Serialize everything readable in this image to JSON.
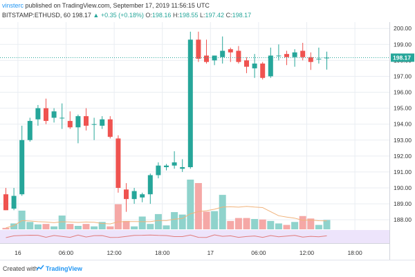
{
  "header": {
    "author": "vinsterc",
    "published": "published on TradingView.com, September 17, 2019 11:56:15 UTC",
    "symbol": "BITSTAMP:ETHUSD, 60",
    "last": "198.17",
    "change": "▲ +0.35 (+0.18%)",
    "o_label": "O:",
    "o_val": "198.16",
    "h_label": "H:",
    "h_val": "198.55",
    "l_label": "L:",
    "l_val": "197.42",
    "c_label": "C:",
    "c_val": "198.17"
  },
  "footer": {
    "created_with": "Created with",
    "brand": "TradingView"
  },
  "colors": {
    "up": "#26a69a",
    "down": "#ef5350",
    "vol_up": "#8fd3cc",
    "vol_down": "#f5a8a6",
    "grid": "#e9edf2",
    "last_line": "#26a69a",
    "label_bg": "#26a69a",
    "ind_bg": "#ede4fb",
    "ind_line": "#e07a7a"
  },
  "chart_data": {
    "type": "candlestick",
    "symbol": "BITSTAMP:ETHUSD",
    "interval": "60",
    "y_ticks": [
      188,
      189,
      190,
      191,
      192,
      193,
      194,
      195,
      196,
      197,
      198,
      199,
      200
    ],
    "y_ticks_text": [
      "188.00",
      "189.00",
      "190.00",
      "191.00",
      "192.00",
      "193.00",
      "194.00",
      "195.00",
      "196.00",
      "197.00",
      "198.00",
      "199.00",
      "200.00"
    ],
    "ylim": [
      187.4,
      200.4
    ],
    "x_ticks": [
      {
        "i": 1.5,
        "label": "16"
      },
      {
        "i": 7.5,
        "label": "06:00"
      },
      {
        "i": 13.5,
        "label": "12:00"
      },
      {
        "i": 19.5,
        "label": "18:00"
      },
      {
        "i": 25.5,
        "label": "17"
      },
      {
        "i": 31.5,
        "label": "06:00"
      },
      {
        "i": 37.5,
        "label": "12:00"
      },
      {
        "i": 43.5,
        "label": "18:00"
      }
    ],
    "last_price": 198.17,
    "last_price_label": "198.17",
    "candles": [
      {
        "o": 189.6,
        "h": 190.0,
        "l": 188.6,
        "c": 188.6,
        "v": 0.3
      },
      {
        "o": 188.7,
        "h": 190.0,
        "l": 188.6,
        "c": 189.5,
        "v": 1.2
      },
      {
        "o": 189.6,
        "h": 193.9,
        "l": 189.5,
        "c": 193.0,
        "v": 3.8
      },
      {
        "o": 193.0,
        "h": 194.4,
        "l": 192.9,
        "c": 194.2,
        "v": 1.5
      },
      {
        "o": 194.3,
        "h": 195.2,
        "l": 193.9,
        "c": 195.0,
        "v": 1.0
      },
      {
        "o": 195.0,
        "h": 195.6,
        "l": 194.0,
        "c": 194.2,
        "v": 1.1
      },
      {
        "o": 194.4,
        "h": 195.0,
        "l": 194.1,
        "c": 194.8,
        "v": 0.6
      },
      {
        "o": 194.4,
        "h": 195.3,
        "l": 193.7,
        "c": 194.4,
        "v": 2.8
      },
      {
        "o": 194.2,
        "h": 194.8,
        "l": 193.7,
        "c": 193.8,
        "v": 1.1
      },
      {
        "o": 193.8,
        "h": 194.6,
        "l": 192.8,
        "c": 194.5,
        "v": 0.7
      },
      {
        "o": 194.5,
        "h": 195.0,
        "l": 193.6,
        "c": 193.9,
        "v": 1.1
      },
      {
        "o": 194.0,
        "h": 194.4,
        "l": 193.0,
        "c": 194.0,
        "v": 0.6
      },
      {
        "o": 193.9,
        "h": 194.5,
        "l": 193.7,
        "c": 194.3,
        "v": 1.5
      },
      {
        "o": 194.3,
        "h": 194.5,
        "l": 193.1,
        "c": 193.2,
        "v": 0.6
      },
      {
        "o": 193.1,
        "h": 193.3,
        "l": 189.7,
        "c": 190.0,
        "v": 5.1
      },
      {
        "o": 189.9,
        "h": 190.3,
        "l": 188.5,
        "c": 189.3,
        "v": 1.7
      },
      {
        "o": 189.3,
        "h": 190.0,
        "l": 189.0,
        "c": 189.8,
        "v": 0.6
      },
      {
        "o": 189.4,
        "h": 189.7,
        "l": 189.1,
        "c": 189.6,
        "v": 2.6
      },
      {
        "o": 189.6,
        "h": 190.9,
        "l": 189.0,
        "c": 190.8,
        "v": 1.1
      },
      {
        "o": 190.8,
        "h": 191.6,
        "l": 190.6,
        "c": 191.4,
        "v": 3.1
      },
      {
        "o": 191.3,
        "h": 191.5,
        "l": 191.1,
        "c": 191.4,
        "v": 0.8
      },
      {
        "o": 191.4,
        "h": 192.3,
        "l": 191.2,
        "c": 191.6,
        "v": 3.5
      },
      {
        "o": 191.2,
        "h": 191.8,
        "l": 191.0,
        "c": 191.3,
        "v": 3.0
      },
      {
        "o": 191.3,
        "h": 199.8,
        "l": 191.2,
        "c": 199.3,
        "v": 10.1
      },
      {
        "o": 199.3,
        "h": 199.8,
        "l": 197.9,
        "c": 198.1,
        "v": 9.4
      },
      {
        "o": 198.3,
        "h": 199.3,
        "l": 197.8,
        "c": 197.9,
        "v": 3.6
      },
      {
        "o": 198.0,
        "h": 198.3,
        "l": 197.7,
        "c": 198.3,
        "v": 3.7
      },
      {
        "o": 198.2,
        "h": 199.5,
        "l": 197.8,
        "c": 198.6,
        "v": 7.0
      },
      {
        "o": 198.7,
        "h": 198.8,
        "l": 197.9,
        "c": 198.5,
        "v": 1.7
      },
      {
        "o": 198.6,
        "h": 198.9,
        "l": 197.8,
        "c": 197.9,
        "v": 2.3
      },
      {
        "o": 198.0,
        "h": 198.2,
        "l": 197.2,
        "c": 197.6,
        "v": 2.3
      },
      {
        "o": 197.5,
        "h": 198.4,
        "l": 196.9,
        "c": 197.8,
        "v": 2.1
      },
      {
        "o": 197.8,
        "h": 197.9,
        "l": 196.8,
        "c": 196.9,
        "v": 2.0
      },
      {
        "o": 197.0,
        "h": 198.8,
        "l": 196.9,
        "c": 198.3,
        "v": 1.7
      },
      {
        "o": 198.3,
        "h": 199.0,
        "l": 198.0,
        "c": 198.3,
        "v": 1.2
      },
      {
        "o": 198.4,
        "h": 198.6,
        "l": 197.7,
        "c": 198.2,
        "v": 0.9
      },
      {
        "o": 198.2,
        "h": 198.7,
        "l": 197.6,
        "c": 198.5,
        "v": 1.5
      },
      {
        "o": 198.6,
        "h": 199.1,
        "l": 198.0,
        "c": 198.2,
        "v": 2.7
      },
      {
        "o": 198.2,
        "h": 198.5,
        "l": 197.4,
        "c": 197.9,
        "v": 2.2
      },
      {
        "o": 198.1,
        "h": 198.8,
        "l": 197.8,
        "c": 198.1,
        "v": 0.9
      },
      {
        "o": 198.16,
        "h": 198.55,
        "l": 197.42,
        "c": 198.17,
        "v": 1.9
      }
    ]
  }
}
